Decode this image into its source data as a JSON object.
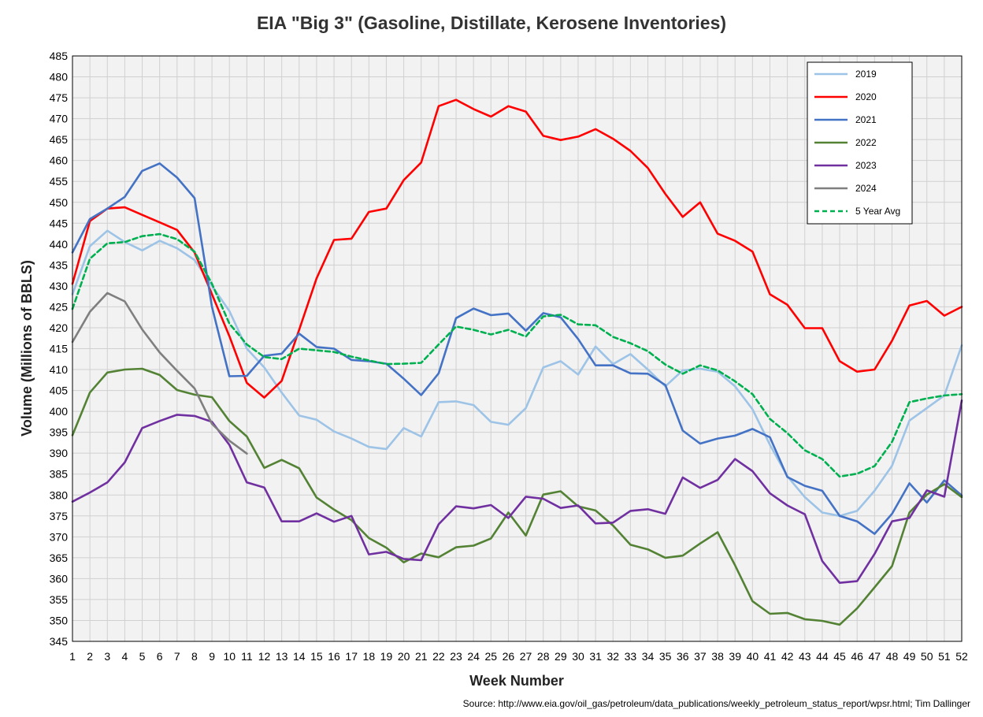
{
  "chart_data": {
    "type": "line",
    "title": "EIA \"Big 3\" (Gasoline, Distillate, Kerosene Inventories)",
    "xlabel": "Week Number",
    "ylabel": "Volume (Millions of BBLS)",
    "ylim": [
      345,
      485
    ],
    "yticks": [
      345,
      350,
      355,
      360,
      365,
      370,
      375,
      380,
      385,
      390,
      395,
      400,
      405,
      410,
      415,
      420,
      425,
      430,
      435,
      440,
      445,
      450,
      455,
      460,
      465,
      470,
      475,
      480,
      485
    ],
    "xlim": [
      1,
      52
    ],
    "grid": true,
    "legend_position": "top-right",
    "source": "Source: http://www.eia.gov/oil_gas/petroleum/data_publications/weekly_petroleum_status_report/wpsr.html; Tim Dallinger",
    "series": [
      {
        "name": "2019",
        "color": "#9DC3E6",
        "dash": "solid",
        "values": [
          428.0,
          439.5,
          443.2,
          440.5,
          438.5,
          440.8,
          439.0,
          436.2,
          430.0,
          424.0,
          415.0,
          410.5,
          404.5,
          399.0,
          398.0,
          395.2,
          393.5,
          391.5,
          391.0,
          396.0,
          394.0,
          402.2,
          402.4,
          401.5,
          397.5,
          396.8,
          400.8,
          410.5,
          412.0,
          408.8,
          415.5,
          411.3,
          413.7,
          410.0,
          406.0,
          409.8,
          410.2,
          409.5,
          406.0,
          400.5,
          392.0,
          384.5,
          379.5,
          375.8,
          375.0,
          376.2,
          381.0,
          387.0,
          397.8,
          400.8,
          403.8,
          415.8
        ]
      },
      {
        "name": "2020",
        "color": "#FF0000",
        "dash": "solid",
        "values": [
          430.5,
          445.5,
          448.5,
          448.8,
          447.0,
          445.2,
          443.4,
          438.0,
          428.0,
          418.0,
          406.8,
          403.3,
          407.3,
          419.5,
          431.8,
          441.0,
          441.3,
          447.7,
          448.5,
          455.3,
          459.5,
          473.0,
          474.5,
          472.3,
          470.5,
          473.0,
          471.7,
          465.9,
          464.9,
          465.7,
          467.5,
          465.2,
          462.3,
          458.2,
          452.0,
          446.5,
          450.0,
          442.5,
          440.8,
          438.2,
          428.0,
          425.5,
          419.9,
          419.9,
          412.0,
          409.5,
          410.0,
          416.9,
          425.3,
          426.4,
          422.9,
          425.0
        ]
      },
      {
        "name": "2021",
        "color": "#4472C4",
        "dash": "solid",
        "values": [
          438.0,
          446.0,
          448.5,
          451.3,
          457.5,
          459.3,
          455.9,
          451.0,
          425.0,
          408.4,
          408.5,
          413.3,
          413.8,
          418.6,
          415.4,
          415.0,
          412.3,
          412.0,
          411.4,
          407.8,
          403.9,
          409.1,
          422.3,
          424.6,
          423.0,
          423.4,
          419.3,
          423.5,
          422.5,
          417.3,
          411.0,
          411.0,
          409.1,
          409.0,
          406.3,
          395.4,
          392.3,
          393.5,
          394.2,
          395.8,
          393.8,
          384.3,
          382.2,
          381.0,
          375.0,
          373.7,
          370.7,
          375.5,
          382.8,
          378.2,
          383.5,
          379.9
        ]
      },
      {
        "name": "2022",
        "color": "#548235",
        "dash": "solid",
        "values": [
          394.3,
          404.5,
          409.3,
          410.0,
          410.2,
          408.7,
          405.1,
          404.0,
          403.4,
          397.7,
          394.0,
          386.5,
          388.4,
          386.4,
          379.4,
          376.5,
          374.0,
          369.7,
          367.4,
          363.9,
          366.0,
          365.1,
          367.5,
          367.9,
          369.6,
          375.8,
          370.3,
          380.1,
          380.9,
          377.3,
          376.3,
          372.7,
          368.1,
          367.0,
          365.0,
          365.5,
          368.4,
          371.1,
          363.2,
          354.6,
          351.6,
          351.8,
          350.3,
          349.9,
          349.0,
          352.9,
          357.9,
          363.0,
          375.8,
          380.1,
          382.6,
          379.5
        ]
      },
      {
        "name": "2023",
        "color": "#7030A0",
        "dash": "solid",
        "values": [
          378.4,
          380.6,
          383.0,
          387.8,
          396.0,
          397.7,
          399.2,
          398.9,
          397.5,
          392.0,
          383.0,
          381.8,
          373.7,
          373.7,
          375.6,
          373.6,
          375.0,
          365.8,
          366.4,
          364.7,
          364.4,
          373.0,
          377.3,
          376.8,
          377.6,
          374.5,
          379.6,
          379.1,
          376.9,
          377.5,
          373.2,
          373.4,
          376.2,
          376.6,
          375.5,
          384.2,
          381.7,
          383.6,
          388.6,
          385.7,
          380.4,
          377.5,
          375.4,
          364.2,
          359.0,
          359.4,
          365.9,
          373.7,
          374.5,
          381.1,
          379.6,
          402.6
        ]
      },
      {
        "name": "2024",
        "color": "#7F7F7F",
        "dash": "solid",
        "values": [
          416.6,
          423.8,
          428.3,
          426.3,
          419.6,
          414.1,
          409.7,
          405.5,
          397.0,
          393.0,
          389.9
        ]
      },
      {
        "name": "5 Year Avg",
        "color": "#00B050",
        "dash": "dashed",
        "values": [
          424.5,
          436.5,
          440.2,
          440.5,
          441.9,
          442.4,
          441.2,
          438.2,
          430.5,
          421.0,
          416.0,
          413.0,
          412.5,
          415.0,
          414.6,
          414.2,
          413.1,
          412.2,
          411.3,
          411.4,
          411.6,
          416.0,
          420.3,
          419.5,
          418.4,
          419.5,
          417.9,
          422.7,
          423.1,
          420.8,
          420.6,
          417.8,
          416.3,
          414.4,
          411.2,
          409.0,
          411.0,
          409.8,
          407.2,
          404.1,
          398.2,
          394.8,
          390.7,
          388.6,
          384.4,
          385.1,
          386.9,
          392.7,
          402.2,
          403.1,
          403.8,
          404.1
        ]
      }
    ]
  }
}
